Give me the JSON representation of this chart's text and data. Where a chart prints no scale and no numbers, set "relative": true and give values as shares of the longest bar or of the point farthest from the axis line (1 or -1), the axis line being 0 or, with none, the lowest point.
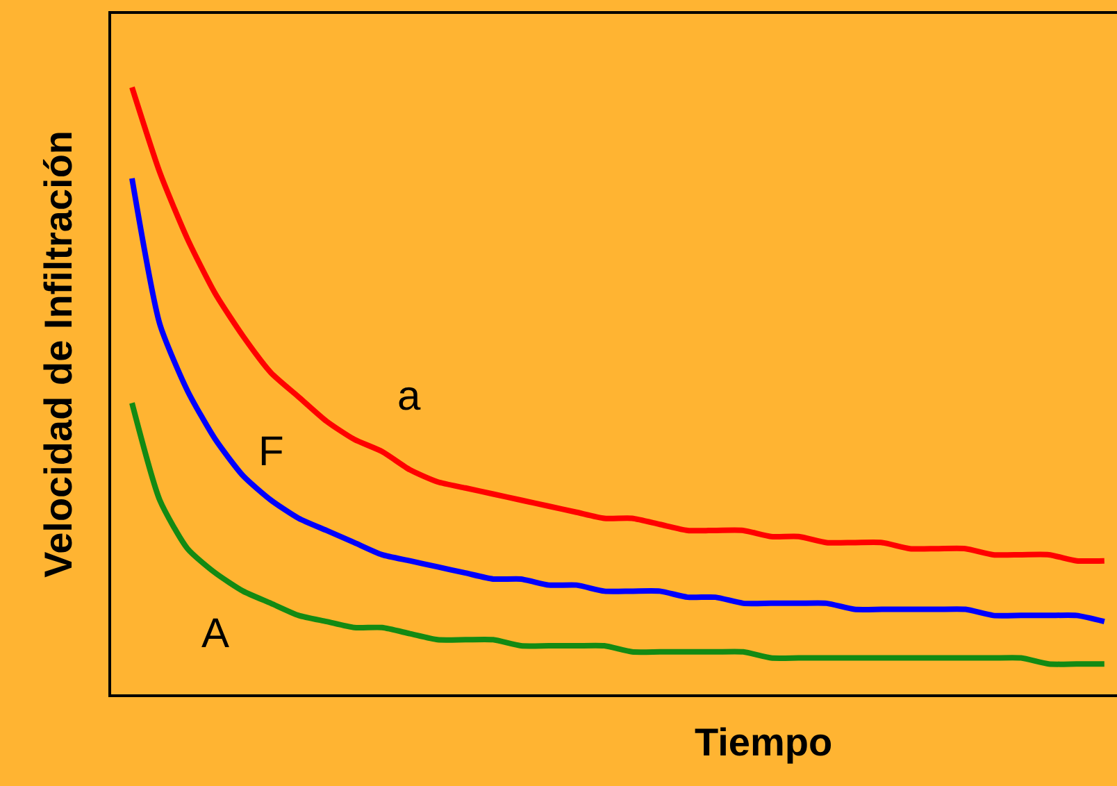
{
  "chart_data": {
    "type": "line",
    "relative": true,
    "xlabel": "Tiempo",
    "ylabel": "Velocidad de Infiltración",
    "legend": false,
    "grid": false,
    "marker": "none",
    "line_style": "solid",
    "categories": [
      null,
      null,
      null,
      null,
      null,
      null,
      null,
      null,
      null,
      null,
      null,
      null,
      null,
      null,
      null,
      null,
      null,
      null,
      null,
      null,
      null,
      null,
      null,
      null,
      null,
      null,
      null,
      null,
      null,
      null,
      null,
      null,
      null,
      null,
      null,
      null
    ],
    "series": [
      {
        "name": "a",
        "color": "#ff0000",
        "values": [
          1.0,
          0.86,
          0.75,
          0.66,
          0.59,
          0.53,
          0.49,
          0.45,
          0.42,
          0.4,
          0.37,
          0.35,
          0.34,
          0.33,
          0.32,
          0.31,
          0.3,
          0.29,
          0.29,
          0.28,
          0.27,
          0.27,
          0.27,
          0.26,
          0.26,
          0.25,
          0.25,
          0.25,
          0.24,
          0.24,
          0.24,
          0.23,
          0.23,
          0.23,
          0.22,
          0.22
        ]
      },
      {
        "name": "F",
        "color": "#0000ff",
        "values": [
          0.85,
          0.61,
          0.5,
          0.42,
          0.36,
          0.32,
          0.29,
          0.27,
          0.25,
          0.23,
          0.22,
          0.21,
          0.2,
          0.19,
          0.19,
          0.18,
          0.18,
          0.17,
          0.17,
          0.17,
          0.16,
          0.16,
          0.15,
          0.15,
          0.15,
          0.15,
          0.14,
          0.14,
          0.14,
          0.14,
          0.14,
          0.13,
          0.13,
          0.13,
          0.13,
          0.12
        ]
      },
      {
        "name": "A",
        "color": "#138a13",
        "values": [
          0.48,
          0.32,
          0.24,
          0.2,
          0.17,
          0.15,
          0.13,
          0.12,
          0.11,
          0.11,
          0.1,
          0.09,
          0.09,
          0.09,
          0.08,
          0.08,
          0.08,
          0.08,
          0.07,
          0.07,
          0.07,
          0.07,
          0.07,
          0.06,
          0.06,
          0.06,
          0.06,
          0.06,
          0.06,
          0.06,
          0.06,
          0.06,
          0.06,
          0.05,
          0.05,
          0.05
        ]
      }
    ]
  }
}
